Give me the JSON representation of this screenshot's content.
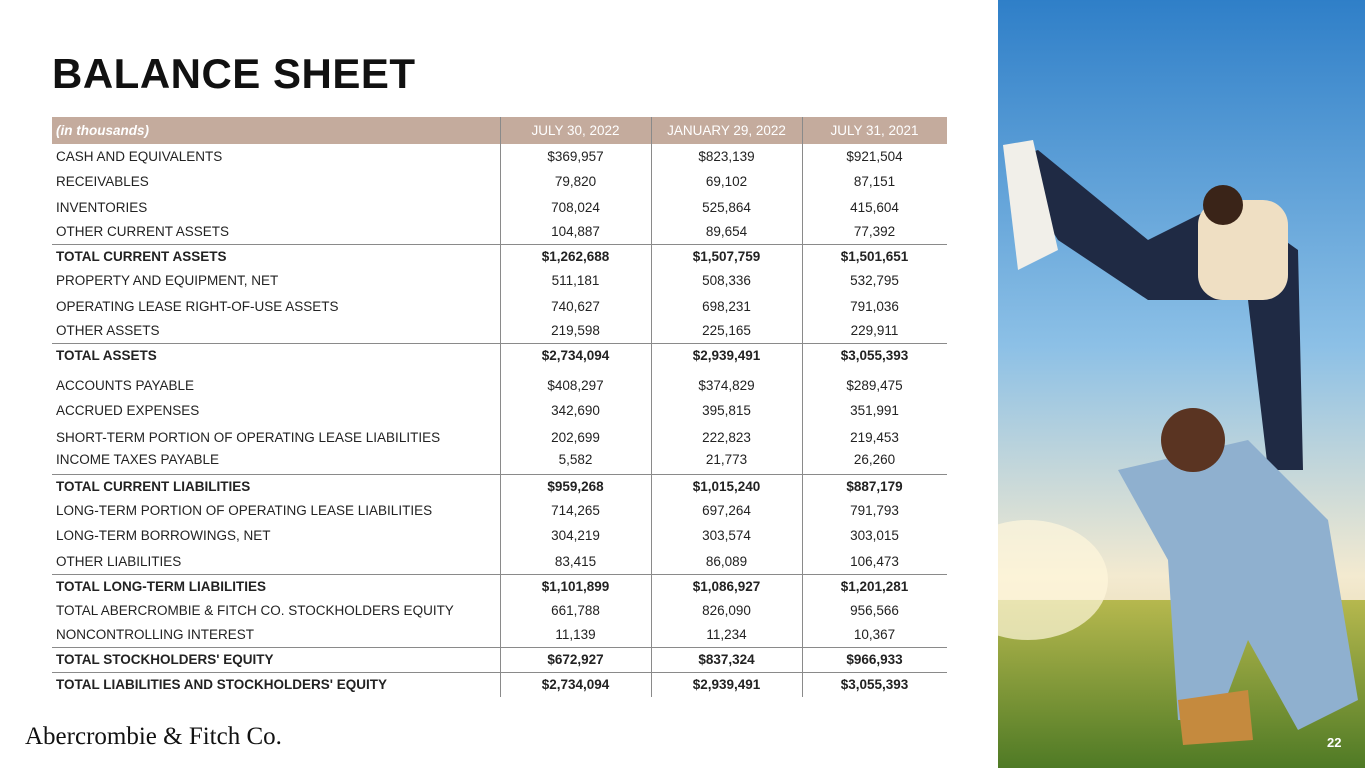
{
  "header": {
    "title": "BALANCE SHEET"
  },
  "table": {
    "columns": [
      "(in thousands)",
      "JULY 30, 2022",
      "JANUARY 29, 2022",
      "JULY 31, 2021"
    ],
    "rows": [
      {
        "label": "CASH AND EQUIVALENTS",
        "values": [
          "$369,957",
          "$823,139",
          "$921,504"
        ]
      },
      {
        "label": "RECEIVABLES",
        "values": [
          "79,820",
          "69,102",
          "87,151"
        ]
      },
      {
        "label": "INVENTORIES",
        "values": [
          "708,024",
          "525,864",
          "415,604"
        ]
      },
      {
        "label": "OTHER CURRENT ASSETS",
        "values": [
          "104,887",
          "89,654",
          "77,392"
        ]
      },
      {
        "label": "TOTAL CURRENT ASSETS",
        "values": [
          "$1,262,688",
          "$1,507,759",
          "$1,501,651"
        ],
        "bold": true
      },
      {
        "label": "PROPERTY AND EQUIPMENT, NET",
        "values": [
          "511,181",
          "508,336",
          "532,795"
        ]
      },
      {
        "label": "OPERATING LEASE RIGHT-OF-USE ASSETS",
        "values": [
          "740,627",
          "698,231",
          "791,036"
        ]
      },
      {
        "label": "OTHER ASSETS",
        "values": [
          "219,598",
          "225,165",
          "229,911"
        ]
      },
      {
        "label": "TOTAL ASSETS",
        "values": [
          "$2,734,094",
          "$2,939,491",
          "$3,055,393"
        ],
        "bold": true
      },
      {
        "label": "ACCOUNTS PAYABLE",
        "values": [
          "$408,297",
          "$374,829",
          "$289,475"
        ]
      },
      {
        "label": "ACCRUED EXPENSES",
        "values": [
          "342,690",
          "395,815",
          "351,991"
        ]
      },
      {
        "label": "SHORT-TERM PORTION OF OPERATING LEASE LIABILITIES",
        "values": [
          "202,699",
          "222,823",
          "219,453"
        ]
      },
      {
        "label": "INCOME TAXES PAYABLE",
        "values": [
          "5,582",
          "21,773",
          "26,260"
        ]
      },
      {
        "label": "TOTAL CURRENT LIABILITIES",
        "values": [
          "$959,268",
          "$1,015,240",
          "$887,179"
        ],
        "bold": true
      },
      {
        "label": "LONG-TERM PORTION OF OPERATING LEASE LIABILITIES",
        "values": [
          "714,265",
          "697,264",
          "791,793"
        ]
      },
      {
        "label": "LONG-TERM BORROWINGS, NET",
        "values": [
          "304,219",
          "303,574",
          "303,015"
        ]
      },
      {
        "label": "OTHER LIABILITIES",
        "values": [
          "83,415",
          "86,089",
          "106,473"
        ]
      },
      {
        "label": "TOTAL LONG-TERM LIABILITIES",
        "values": [
          "$1,101,899",
          "$1,086,927",
          "$1,201,281"
        ],
        "bold": true
      },
      {
        "label": "TOTAL ABERCROMBIE & FITCH CO. STOCKHOLDERS EQUITY",
        "values": [
          "661,788",
          "826,090",
          "956,566"
        ]
      },
      {
        "label": "NONCONTROLLING INTEREST",
        "values": [
          "11,139",
          "11,234",
          "10,367"
        ]
      },
      {
        "label": "TOTAL STOCKHOLDERS' EQUITY",
        "values": [
          "$672,927",
          "$837,324",
          "$966,933"
        ],
        "bold": true
      },
      {
        "label": "TOTAL LIABILITIES AND STOCKHOLDERS' EQUITY",
        "values": [
          "$2,734,094",
          "$2,939,491",
          "$3,055,393"
        ],
        "bold": true
      }
    ]
  },
  "footer": {
    "logo": "Abercrombie & Fitch Co.",
    "page_number": "22"
  }
}
